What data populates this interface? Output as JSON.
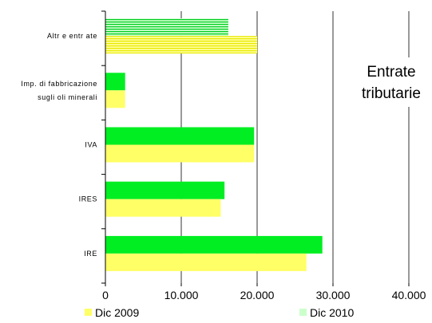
{
  "chart_data": {
    "type": "bar",
    "orientation": "horizontal",
    "title": "",
    "annotation": [
      "Entrate",
      "tributarie"
    ],
    "categories": [
      "IRE",
      "IRES",
      "IVA",
      "Imp. di fabbricazione sugli oli minerali",
      "Altre entrate"
    ],
    "category_labels": [
      [
        "IRE"
      ],
      [
        "IRES"
      ],
      [
        "IVA"
      ],
      [
        "Imp. di fabbricazione",
        "sugli oli minerali"
      ],
      [
        "Altr e entr ate"
      ]
    ],
    "series": [
      {
        "name": "Dic 2009",
        "values": [
          26500,
          15200,
          19600,
          2600,
          20000
        ]
      },
      {
        "name": "Dic 2010",
        "values": [
          28600,
          15700,
          19600,
          2600,
          16200
        ]
      }
    ],
    "xlim": [
      0,
      40000
    ],
    "ticks": [
      0,
      10000,
      20000,
      30000,
      40000
    ],
    "tick_labels": [
      "0",
      "10.000",
      "20.000",
      "30.000",
      "40.000"
    ],
    "grid": true,
    "legend_position": "bottom",
    "colors": {
      "Dic 2009": "#ffff66",
      "Dic 2010": "#00ee22",
      "Dic 2009 line": "#e8e800",
      "Dic 2010 stripe": "#00cc22",
      "grid": "#000000"
    }
  }
}
